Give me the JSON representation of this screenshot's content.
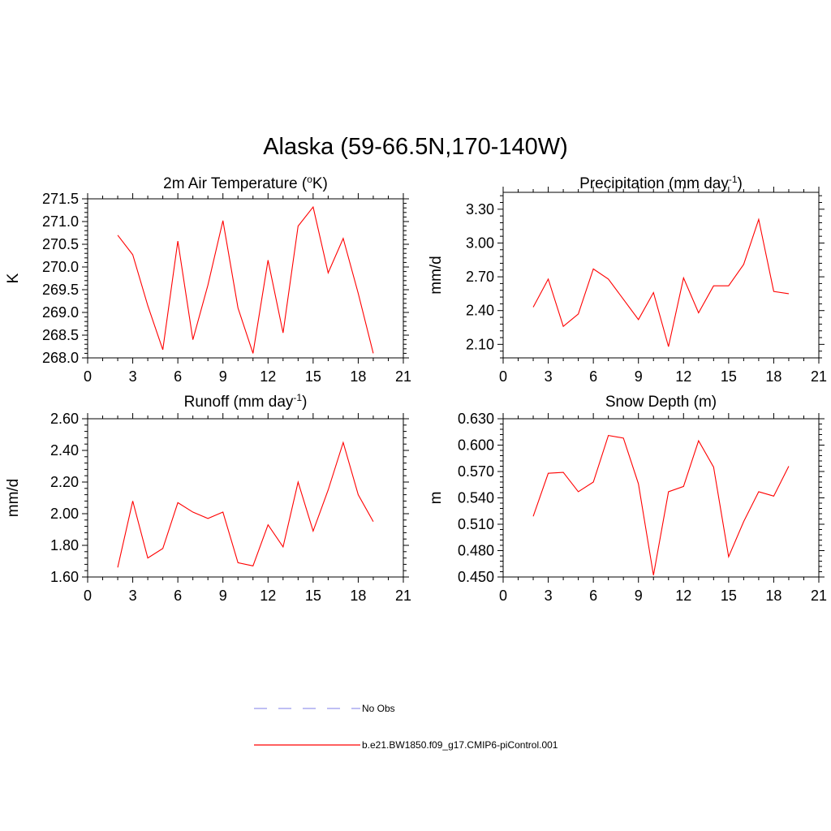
{
  "main_title": "Alaska (59-66.5N,170-140W)",
  "legend": [
    {
      "label": "No Obs",
      "color": "#9999ee",
      "dash": true
    },
    {
      "label": "b.e21.BW1850.f09_g17.CMIP6-piControl.001",
      "color": "#ff0000",
      "dash": false
    }
  ],
  "chart_data": [
    {
      "type": "line",
      "title": "2m Air Temperature (oK)",
      "ylabel": "K",
      "xlim": [
        0,
        21
      ],
      "ylim": [
        268.0,
        271.5
      ],
      "xticks": [
        0,
        3,
        6,
        9,
        12,
        15,
        18,
        21
      ],
      "yticks": [
        268.0,
        268.5,
        269.0,
        269.5,
        270.0,
        270.5,
        271.0,
        271.5
      ],
      "ytick_decimals": 1,
      "series": [
        {
          "name": "b.e21.BW1850.f09_g17.CMIP6-piControl.001",
          "x": [
            2,
            3,
            4,
            5,
            6,
            7,
            8,
            9,
            10,
            11,
            12,
            13,
            14,
            15,
            16,
            17,
            18,
            19
          ],
          "y": [
            270.7,
            270.27,
            269.15,
            268.18,
            270.57,
            268.4,
            269.6,
            271.02,
            269.1,
            268.1,
            270.15,
            268.55,
            270.9,
            271.32,
            269.87,
            270.63,
            269.42,
            268.1
          ]
        }
      ]
    },
    {
      "type": "line",
      "title": "Precipitation (mm day-1)",
      "ylabel": "mm/d",
      "xlim": [
        0,
        21
      ],
      "ylim": [
        1.98,
        3.45
      ],
      "xticks": [
        0,
        3,
        6,
        9,
        12,
        15,
        18,
        21
      ],
      "yticks": [
        2.1,
        2.4,
        2.7,
        3.0,
        3.3
      ],
      "ytick_decimals": 2,
      "series": [
        {
          "name": "b.e21.BW1850.f09_g17.CMIP6-piControl.001",
          "x": [
            2,
            3,
            4,
            5,
            6,
            7,
            8,
            9,
            10,
            11,
            12,
            13,
            14,
            15,
            16,
            17,
            18,
            19
          ],
          "y": [
            2.43,
            2.68,
            2.26,
            2.37,
            2.77,
            2.68,
            2.5,
            2.32,
            2.56,
            2.08,
            2.69,
            2.38,
            2.62,
            2.62,
            2.81,
            3.21,
            2.57,
            2.55
          ]
        }
      ]
    },
    {
      "type": "line",
      "title": "Runoff (mm day-1)",
      "ylabel": "mm/d",
      "xlim": [
        0,
        21
      ],
      "ylim": [
        1.6,
        2.6
      ],
      "xticks": [
        0,
        3,
        6,
        9,
        12,
        15,
        18,
        21
      ],
      "yticks": [
        1.6,
        1.8,
        2.0,
        2.2,
        2.4,
        2.6
      ],
      "ytick_decimals": 2,
      "series": [
        {
          "name": "b.e21.BW1850.f09_g17.CMIP6-piControl.001",
          "x": [
            2,
            3,
            4,
            5,
            6,
            7,
            8,
            9,
            10,
            11,
            12,
            13,
            14,
            15,
            16,
            17,
            18,
            19
          ],
          "y": [
            1.66,
            2.08,
            1.72,
            1.78,
            2.07,
            2.01,
            1.97,
            2.01,
            1.69,
            1.67,
            1.93,
            1.79,
            2.2,
            1.89,
            2.15,
            2.45,
            2.12,
            1.95
          ]
        }
      ]
    },
    {
      "type": "line",
      "title": "Snow Depth (m)",
      "ylabel": "m",
      "xlim": [
        0,
        21
      ],
      "ylim": [
        0.45,
        0.63
      ],
      "xticks": [
        0,
        3,
        6,
        9,
        12,
        15,
        18,
        21
      ],
      "yticks": [
        0.45,
        0.48,
        0.51,
        0.54,
        0.57,
        0.6,
        0.63
      ],
      "ytick_decimals": 3,
      "series": [
        {
          "name": "b.e21.BW1850.f09_g17.CMIP6-piControl.001",
          "x": [
            2,
            3,
            4,
            5,
            6,
            7,
            8,
            9,
            10,
            11,
            12,
            13,
            14,
            15,
            16,
            17,
            18,
            19
          ],
          "y": [
            0.519,
            0.568,
            0.569,
            0.547,
            0.558,
            0.611,
            0.608,
            0.556,
            0.452,
            0.547,
            0.553,
            0.605,
            0.575,
            0.473,
            0.513,
            0.547,
            0.542,
            0.576
          ]
        }
      ]
    }
  ]
}
